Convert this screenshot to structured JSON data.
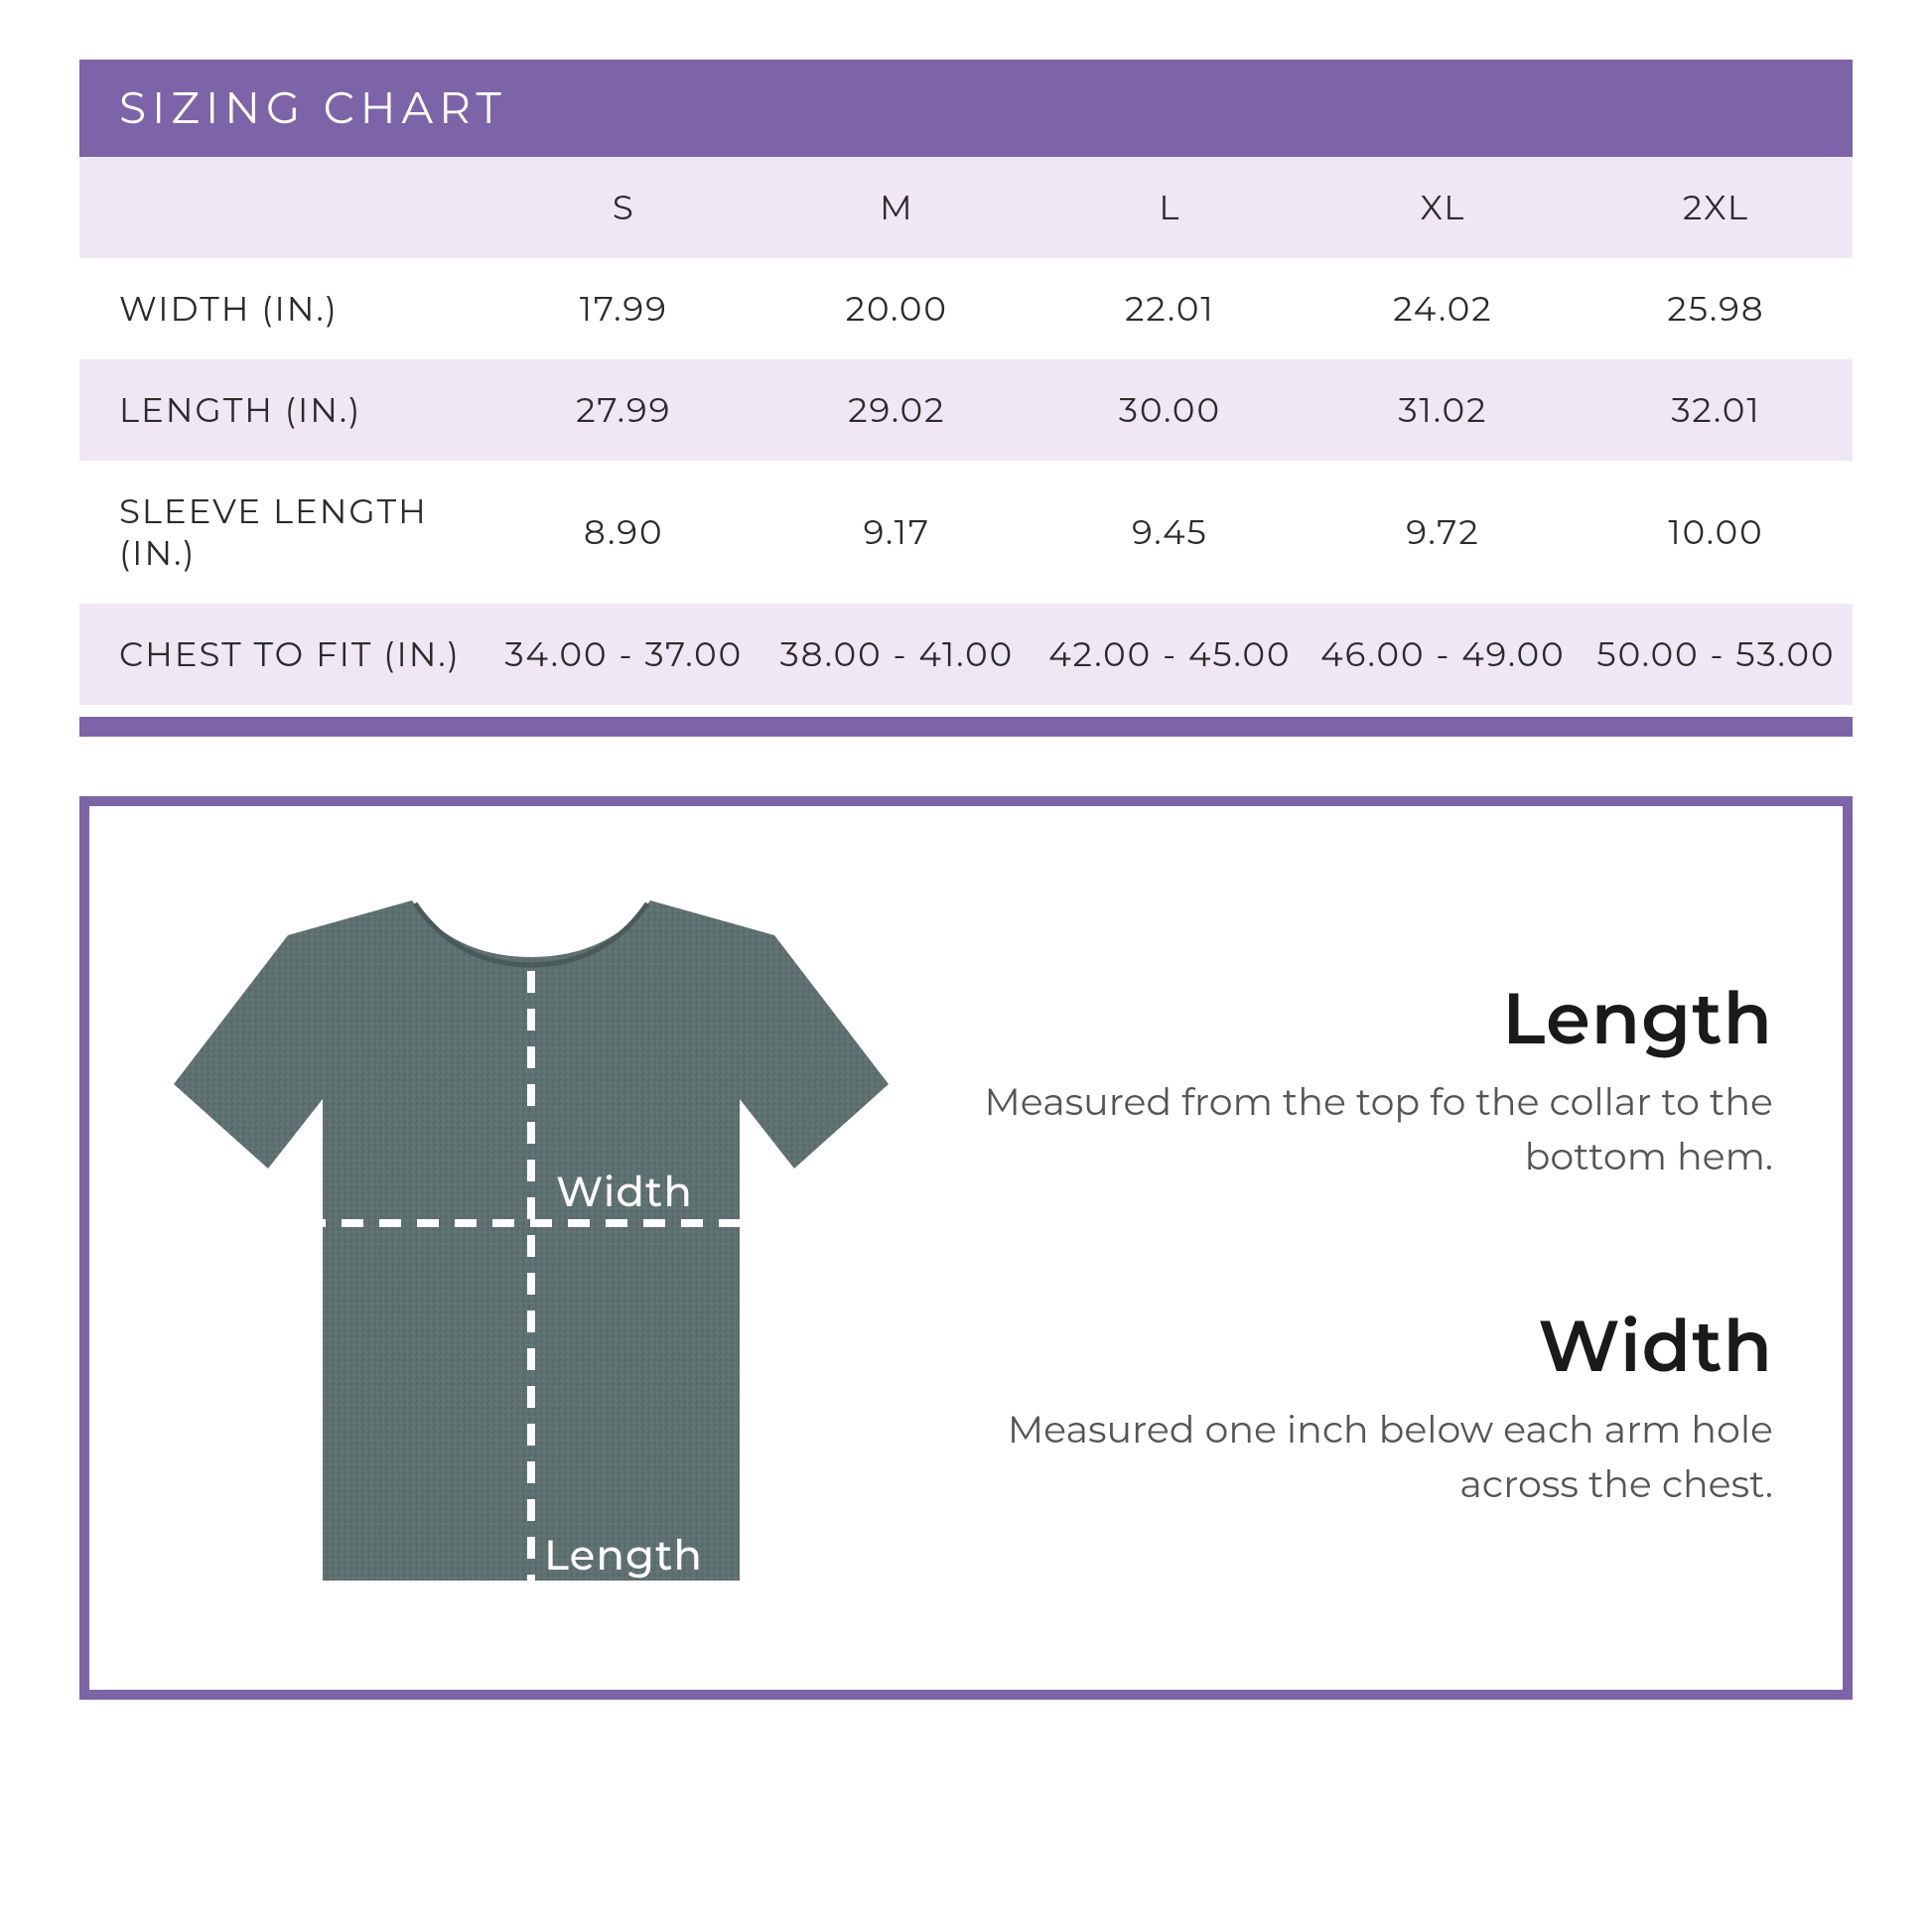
{
  "colors": {
    "brand_purple": "#7d63a8",
    "row_alt": "#efe7f4",
    "row_base": "#ffffff",
    "text_dark": "#2b2b2b",
    "tshirt_fill": "#5f7170",
    "tshirt_noise": "#526461",
    "dash": "#ffffff"
  },
  "title": "SIZING CHART",
  "table": {
    "columns": [
      "S",
      "M",
      "L",
      "XL",
      "2XL"
    ],
    "rows": [
      {
        "label": "WIDTH (IN.)",
        "values": [
          "17.99",
          "20.00",
          "22.01",
          "24.02",
          "25.98"
        ]
      },
      {
        "label": "LENGTH (IN.)",
        "values": [
          "27.99",
          "29.02",
          "30.00",
          "31.02",
          "32.01"
        ]
      },
      {
        "label": "SLEEVE LENGTH (IN.)",
        "values": [
          "8.90",
          "9.17",
          "9.45",
          "9.72",
          "10.00"
        ]
      },
      {
        "label": "CHEST TO FIT (IN.)",
        "values": [
          "34.00 - 37.00",
          "38.00 - 41.00",
          "42.00 - 45.00",
          "46.00 - 49.00",
          "50.00 - 53.00"
        ]
      }
    ]
  },
  "diagram": {
    "width_label": "Width",
    "length_label": "Length",
    "length": {
      "heading": "Length",
      "text": "Measured from the top fo the collar to the bottom hem."
    },
    "width": {
      "heading": "Width",
      "text": "Measured one inch below each arm hole across the chest."
    }
  }
}
